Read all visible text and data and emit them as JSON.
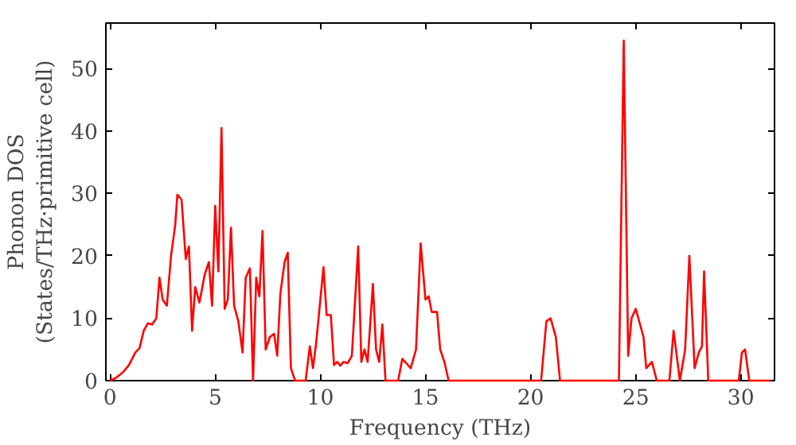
{
  "chart_data": {
    "type": "line",
    "xlabel": "Frequency (THz)",
    "ylabel": "Phonon DOS\n(States/THz·primitive cell)",
    "xlim": [
      -0.2,
      31.6
    ],
    "ylim": [
      0,
      57.3
    ],
    "xticks": [
      0,
      5,
      10,
      15,
      20,
      25,
      30
    ],
    "yticks": [
      0,
      10,
      20,
      30,
      40,
      50
    ],
    "grid": false,
    "series": [
      {
        "color": "#ff0000",
        "x": [
          0,
          0.3,
          0.6,
          0.9,
          1.2,
          1.4,
          1.6,
          1.8,
          2.0,
          2.2,
          2.35,
          2.5,
          2.7,
          2.9,
          3.1,
          3.2,
          3.4,
          3.6,
          3.75,
          3.9,
          4.05,
          4.25,
          4.5,
          4.7,
          4.85,
          5.0,
          5.15,
          5.3,
          5.45,
          5.6,
          5.75,
          5.9,
          6.1,
          6.3,
          6.45,
          6.65,
          6.8,
          6.95,
          7.1,
          7.25,
          7.4,
          7.6,
          7.8,
          7.95,
          8.1,
          8.3,
          8.45,
          8.6,
          8.8,
          9.3,
          9.5,
          9.65,
          9.8,
          10.15,
          10.3,
          10.5,
          10.65,
          10.8,
          10.95,
          11.1,
          11.3,
          11.5,
          11.8,
          11.95,
          12.1,
          12.25,
          12.5,
          12.65,
          12.8,
          12.95,
          13.1,
          13.7,
          13.9,
          14.3,
          14.55,
          14.77,
          15.0,
          15.15,
          15.3,
          15.55,
          15.7,
          15.9,
          16.1,
          20.5,
          20.75,
          20.95,
          21.2,
          21.4,
          24.2,
          24.43,
          24.64,
          24.8,
          25.0,
          25.37,
          25.5,
          25.77,
          26.0,
          26.6,
          26.8,
          27.1,
          27.35,
          27.55,
          27.8,
          28.0,
          28.15,
          28.25,
          28.45,
          29.9,
          30.05,
          30.2,
          30.4,
          31.4
        ],
        "values": [
          0,
          0.5,
          1.3,
          2.5,
          4.5,
          5.2,
          8,
          9.2,
          9,
          10,
          16.5,
          13,
          12,
          20,
          25,
          29.8,
          29,
          19.5,
          21.5,
          8,
          15,
          12.5,
          17,
          19,
          12,
          28,
          17.5,
          40.5,
          11.5,
          13,
          24.5,
          12,
          9.5,
          4.5,
          16.5,
          18,
          0,
          16.5,
          13.5,
          24,
          5,
          7,
          7.5,
          4,
          14,
          19,
          20.5,
          2,
          0,
          0,
          5.5,
          2,
          6,
          18.2,
          10.5,
          10.5,
          2.5,
          3,
          2.4,
          3,
          2.8,
          4,
          21.5,
          3,
          5,
          3,
          15.5,
          5,
          3,
          9,
          0,
          0,
          3.5,
          2,
          5,
          22,
          13,
          13.5,
          11,
          11,
          5,
          3,
          0,
          0,
          9.5,
          10,
          7,
          0,
          0,
          54.5,
          4,
          10,
          11.5,
          7,
          2,
          3,
          0,
          0,
          8,
          0,
          5,
          20,
          2,
          4.5,
          5.5,
          17.5,
          0,
          0,
          4.5,
          5,
          0,
          0
        ]
      }
    ]
  }
}
